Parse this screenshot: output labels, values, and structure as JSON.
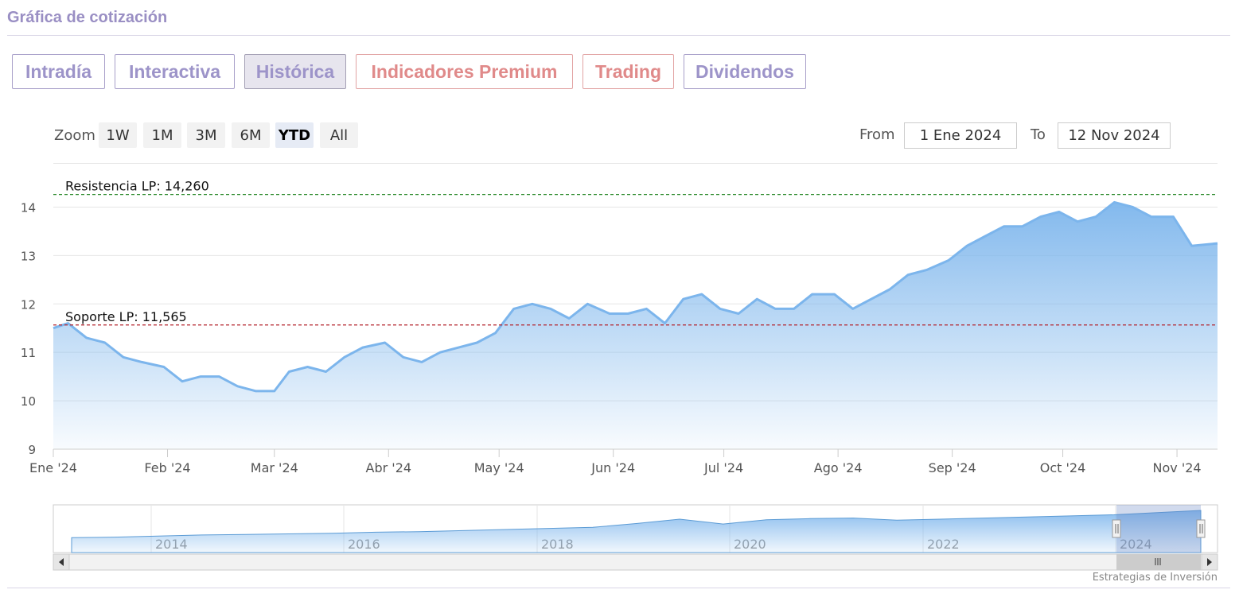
{
  "header": {
    "title": "Gráfica de cotización"
  },
  "tabs": [
    {
      "label": "Intradía",
      "active": false,
      "premium": false
    },
    {
      "label": "Interactiva",
      "active": false,
      "premium": false
    },
    {
      "label": "Histórica",
      "active": true,
      "premium": false
    },
    {
      "label": "Indicadores Premium",
      "active": false,
      "premium": true
    },
    {
      "label": "Trading",
      "active": false,
      "premium": true
    },
    {
      "label": "Dividendos",
      "active": false,
      "premium": false
    }
  ],
  "zoom": {
    "label": "Zoom",
    "buttons": [
      "1W",
      "1M",
      "3M",
      "6M",
      "YTD",
      "All"
    ],
    "selected": "YTD"
  },
  "range": {
    "from_label": "From",
    "from_value": "1 Ene 2024",
    "to_label": "To",
    "to_value": "12 Nov 2024"
  },
  "credit": "Estrategias de Inversión",
  "colors": {
    "line": "#7cb5ec",
    "resistance": "#2e8b2e",
    "support": "#b3202a",
    "tab_text": "#9d94c9",
    "tab_premium": "#e08a8a"
  },
  "chart_data": {
    "type": "area",
    "title": "",
    "ylim": [
      9,
      14.5
    ],
    "y_ticks": [
      9,
      10,
      11,
      12,
      13,
      14
    ],
    "x_tick_labels": [
      "Ene '24",
      "Feb '24",
      "Mar '24",
      "Abr '24",
      "May '24",
      "Jun '24",
      "Jul '24",
      "Ago '24",
      "Sep '24",
      "Oct '24",
      "Nov '24"
    ],
    "x_tick_dates": [
      "2024-01-01",
      "2024-02-01",
      "2024-03-01",
      "2024-04-01",
      "2024-05-01",
      "2024-06-01",
      "2024-07-01",
      "2024-08-01",
      "2024-09-01",
      "2024-10-01",
      "2024-11-01"
    ],
    "x_range": [
      "2024-01-01",
      "2024-11-12"
    ],
    "grid": true,
    "series": [
      {
        "x": [
          "2024-01-01",
          "2024-01-05",
          "2024-01-10",
          "2024-01-15",
          "2024-01-20",
          "2024-01-25",
          "2024-01-31",
          "2024-02-05",
          "2024-02-10",
          "2024-02-15",
          "2024-02-20",
          "2024-02-25",
          "2024-03-01",
          "2024-03-05",
          "2024-03-10",
          "2024-03-15",
          "2024-03-20",
          "2024-03-25",
          "2024-03-31",
          "2024-04-05",
          "2024-04-10",
          "2024-04-15",
          "2024-04-20",
          "2024-04-25",
          "2024-04-30",
          "2024-05-05",
          "2024-05-10",
          "2024-05-15",
          "2024-05-20",
          "2024-05-25",
          "2024-05-31",
          "2024-06-05",
          "2024-06-10",
          "2024-06-15",
          "2024-06-20",
          "2024-06-25",
          "2024-06-30",
          "2024-07-05",
          "2024-07-10",
          "2024-07-15",
          "2024-07-20",
          "2024-07-25",
          "2024-07-31",
          "2024-08-05",
          "2024-08-10",
          "2024-08-15",
          "2024-08-20",
          "2024-08-25",
          "2024-08-31",
          "2024-09-05",
          "2024-09-10",
          "2024-09-15",
          "2024-09-20",
          "2024-09-25",
          "2024-09-30",
          "2024-10-05",
          "2024-10-10",
          "2024-10-15",
          "2024-10-20",
          "2024-10-25",
          "2024-10-31",
          "2024-11-05",
          "2024-11-12"
        ],
        "values": [
          11.5,
          11.6,
          11.3,
          11.2,
          10.9,
          10.8,
          10.7,
          10.4,
          10.5,
          10.5,
          10.3,
          10.2,
          10.2,
          10.6,
          10.7,
          10.6,
          10.9,
          11.1,
          11.2,
          10.9,
          10.8,
          11.0,
          11.1,
          11.2,
          11.4,
          11.9,
          12.0,
          11.9,
          11.7,
          12.0,
          11.8,
          11.8,
          11.9,
          11.6,
          12.1,
          12.2,
          11.9,
          11.8,
          12.1,
          11.9,
          11.9,
          12.2,
          12.2,
          11.9,
          12.1,
          12.3,
          12.6,
          12.7,
          12.9,
          13.2,
          13.4,
          13.6,
          13.6,
          13.8,
          13.9,
          13.7,
          13.8,
          14.1,
          14.0,
          13.8,
          13.8,
          13.2,
          13.25
        ]
      }
    ],
    "annotations": [
      {
        "label": "Resistencia LP: 14,260",
        "value": 14.26
      },
      {
        "label": "Soporte LP: 11,565",
        "value": 11.565
      }
    ],
    "navigator": {
      "year_labels": [
        "2014",
        "2016",
        "2018",
        "2020",
        "2022",
        "2024"
      ],
      "values": [
        2.0,
        2.1,
        2.3,
        2.5,
        2.6,
        2.7,
        2.8,
        3.0,
        3.1,
        3.3,
        3.5,
        3.7,
        3.9,
        4.6,
        5.4,
        4.5,
        5.3,
        5.5,
        5.6,
        5.2,
        5.4,
        5.6,
        5.8,
        6.0,
        6.2,
        6.6,
        7.0
      ]
    }
  }
}
